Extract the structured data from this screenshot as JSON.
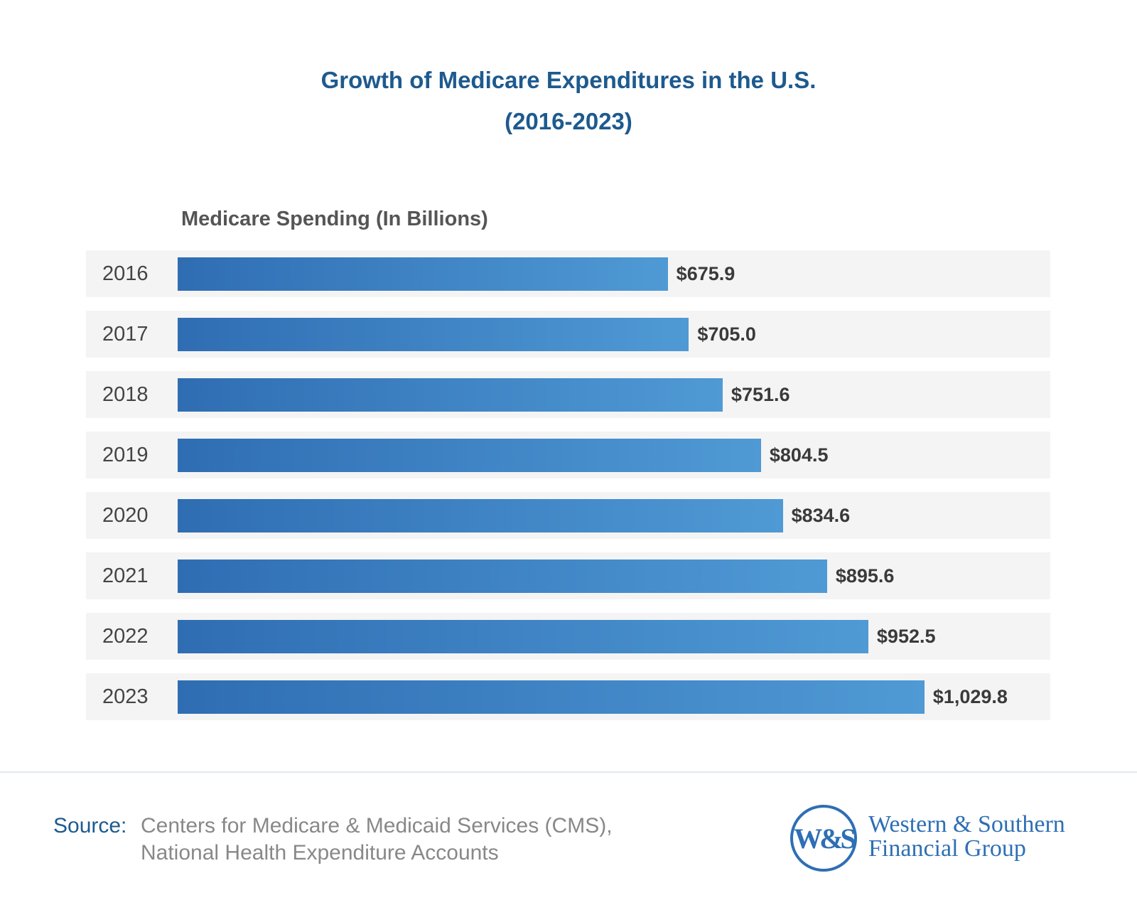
{
  "chart_data": {
    "type": "bar",
    "orientation": "horizontal",
    "title": "Growth of Medicare Expenditures in the U.S.",
    "subtitle": "(2016-2023)",
    "ylabel": "Medicare Spending (In Billions)",
    "categories": [
      "2016",
      "2017",
      "2018",
      "2019",
      "2020",
      "2021",
      "2022",
      "2023"
    ],
    "values": [
      675.9,
      705.0,
      751.6,
      804.5,
      834.6,
      895.6,
      952.5,
      1029.8
    ],
    "data_labels": [
      "$675.9",
      "$705.0",
      "$751.6",
      "$804.5",
      "$834.6",
      "$895.6",
      "$952.5",
      "$1,029.8"
    ],
    "xlim": [
      0,
      1030
    ],
    "grid": false,
    "bar_color_start": "#2f6db3",
    "bar_color_end": "#4f9ad5"
  },
  "footer": {
    "source_label": "Source:",
    "source_line1": "Centers for Medicare & Medicaid Services (CMS),",
    "source_line2": "National Health Expenditure Accounts"
  },
  "logo": {
    "monogram": "W&S",
    "line1": "Western & Southern",
    "line2": "Financial Group",
    "color": "#2e6fb5"
  }
}
